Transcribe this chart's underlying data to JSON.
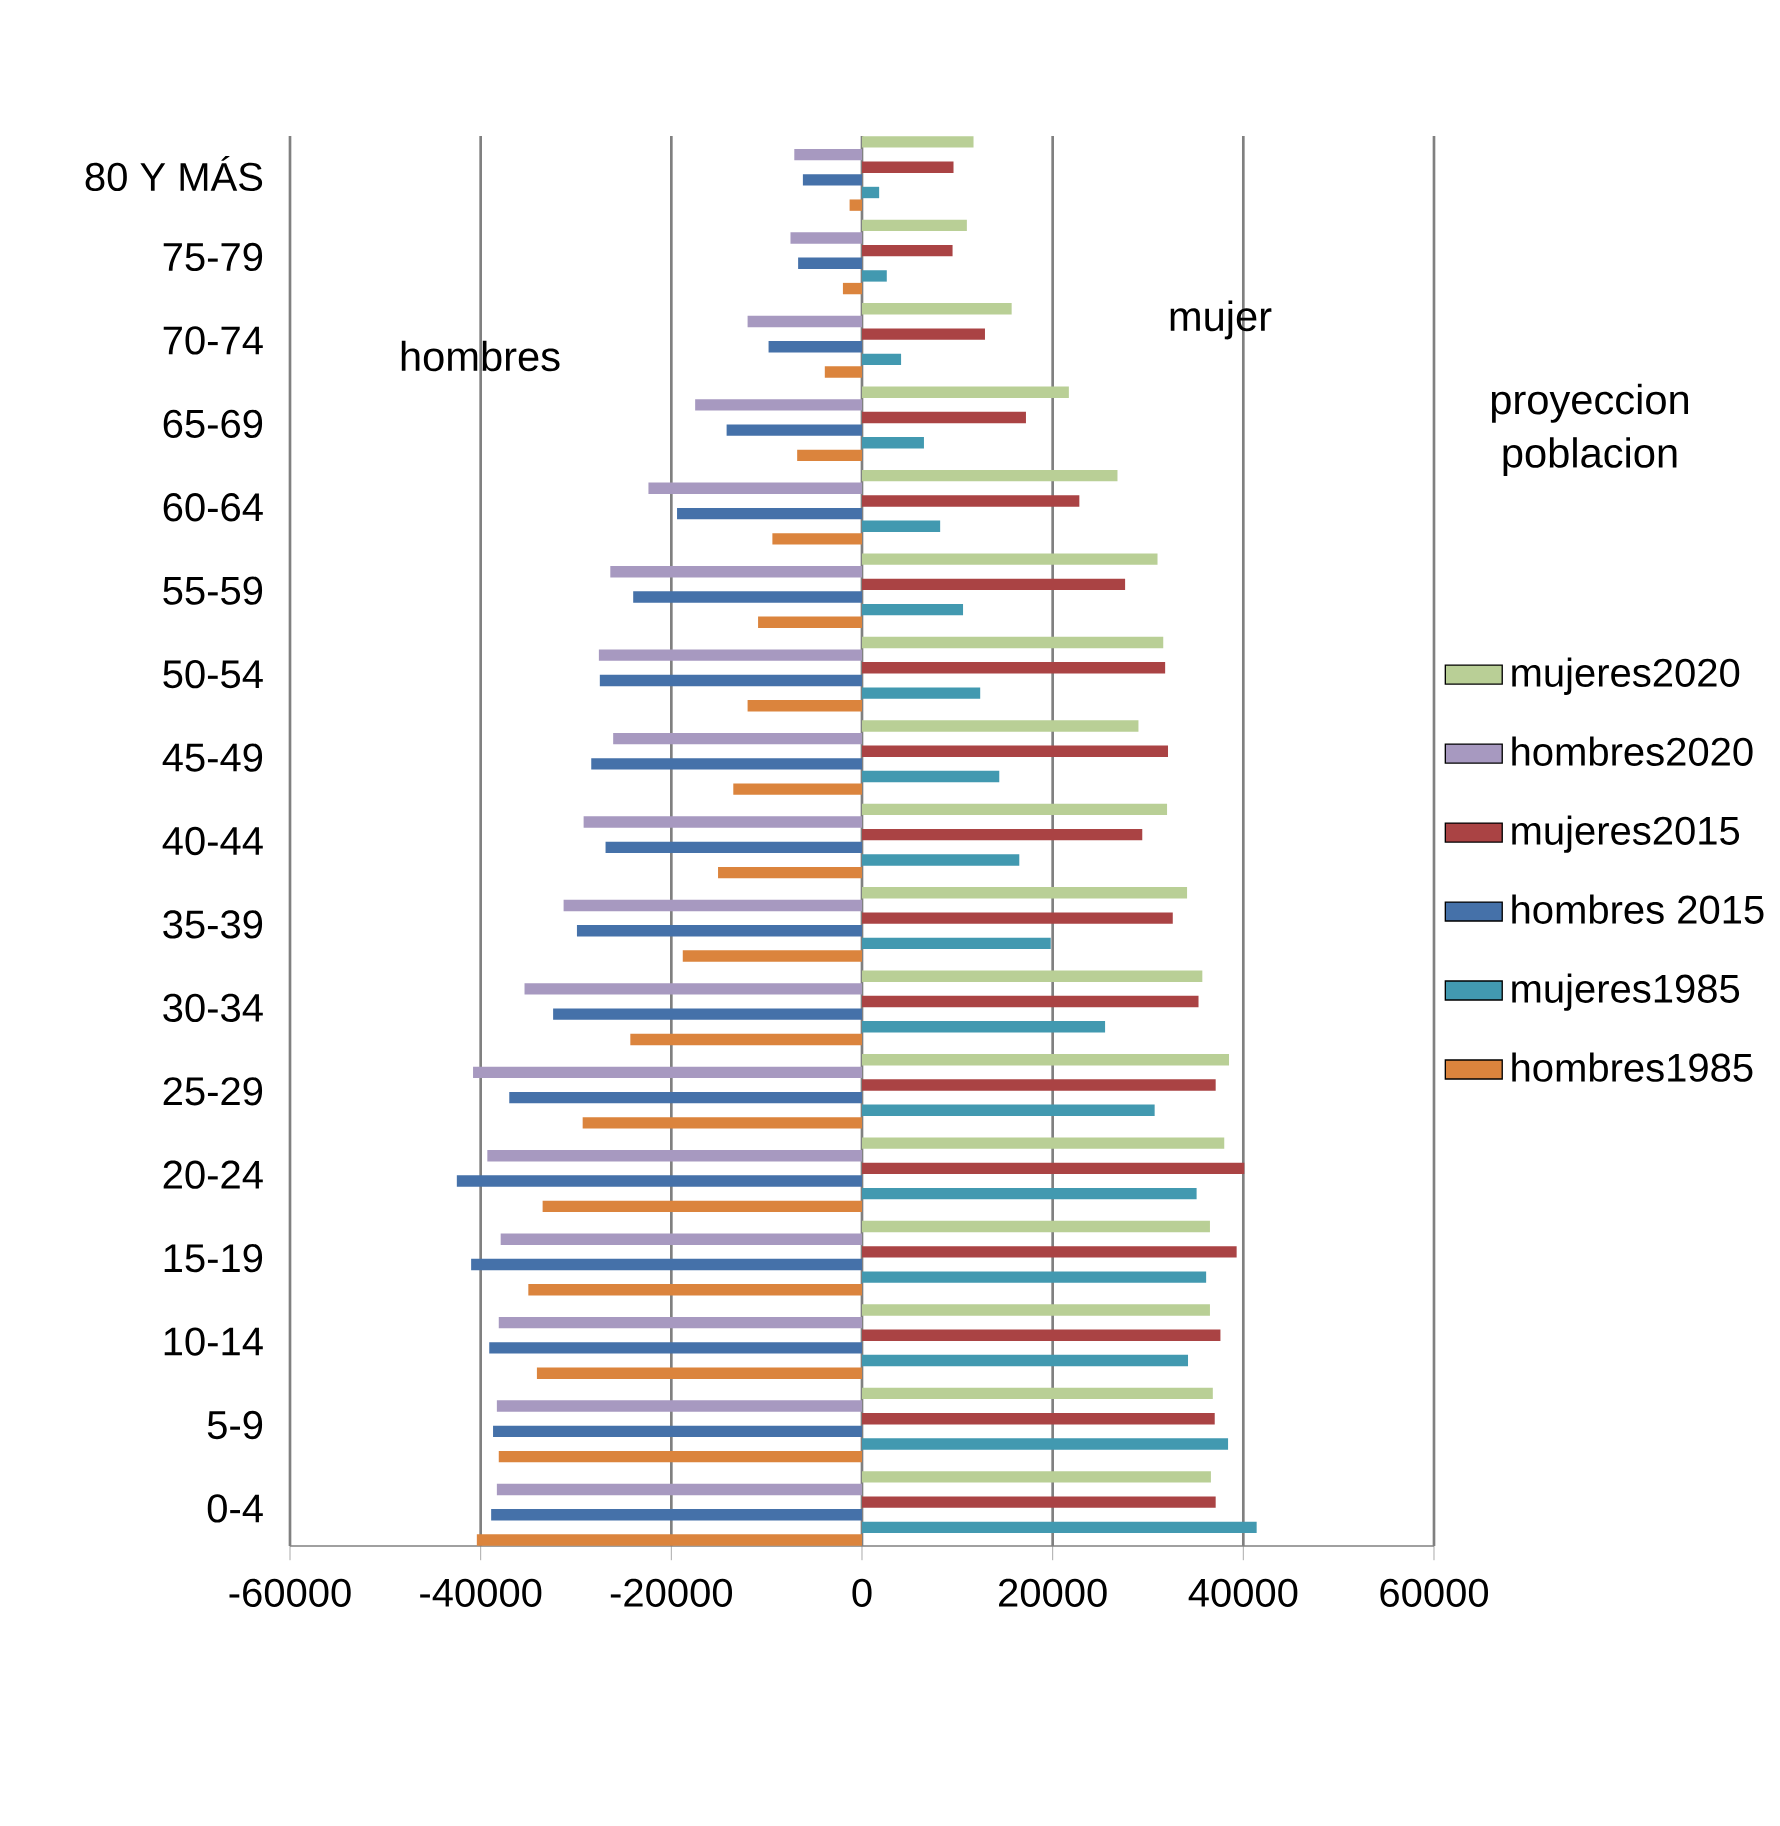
{
  "chart_data": {
    "type": "bar",
    "orientation": "horizontal",
    "categories": [
      "80 Y MÁS",
      "75-79",
      "70-74",
      "65-69",
      "60-64",
      "55-59",
      "50-54",
      "45-49",
      "40-44",
      "35-39",
      "30-34",
      "25-29",
      "20-24",
      "15-19",
      "10-14",
      "5-9",
      "0-4"
    ],
    "series": [
      {
        "name": "mujeres2020",
        "color": "#b9cf96",
        "values": [
          11700,
          11000,
          15700,
          21700,
          26800,
          31000,
          31600,
          29000,
          32000,
          34100,
          35700,
          38500,
          38000,
          36500,
          36500,
          36800,
          36600
        ]
      },
      {
        "name": "hombres2020",
        "color": "#a799c0",
        "values": [
          -7100,
          -7500,
          -12000,
          -17500,
          -22400,
          -26400,
          -27600,
          -26100,
          -29200,
          -31300,
          -35400,
          -40800,
          -39300,
          -37900,
          -38100,
          -38300,
          -38300
        ]
      },
      {
        "name": "mujeres2015",
        "color": "#aa4344",
        "values": [
          9600,
          9500,
          12900,
          17200,
          22800,
          27600,
          31800,
          32100,
          29400,
          32600,
          35300,
          37100,
          40100,
          39300,
          37600,
          37000,
          37100
        ]
      },
      {
        "name": "hombres 2015",
        "color": "#4571a9",
        "values": [
          -6200,
          -6700,
          -9800,
          -14200,
          -19400,
          -24000,
          -27500,
          -28400,
          -26900,
          -29900,
          -32400,
          -37000,
          -42500,
          -41000,
          -39100,
          -38700,
          -38900
        ]
      },
      {
        "name": "mujeres1985",
        "color": "#4299b0",
        "values": [
          1800,
          2600,
          4100,
          6500,
          8200,
          10600,
          12400,
          14400,
          16500,
          19800,
          25500,
          30700,
          35100,
          36100,
          34200,
          38400,
          41400
        ]
      },
      {
        "name": "hombres1985",
        "color": "#db843d",
        "values": [
          -1300,
          -2000,
          -3900,
          -6800,
          -9400,
          -10900,
          -12000,
          -13500,
          -15100,
          -18800,
          -24300,
          -29300,
          -33500,
          -35000,
          -34100,
          -38100,
          -40400
        ]
      }
    ],
    "xlim": [
      -60000,
      60000
    ],
    "xticks": [
      -60000,
      -40000,
      -20000,
      0,
      20000,
      40000,
      60000
    ],
    "grid": "x",
    "legend": "right",
    "annotations": [
      "hombres",
      "mujer",
      "proyeccion poblacion"
    ]
  }
}
